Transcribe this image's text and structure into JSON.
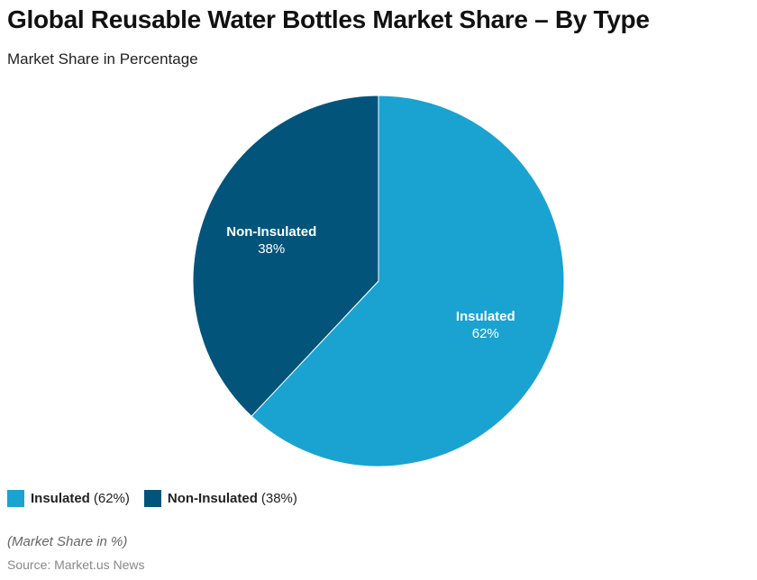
{
  "header": {
    "title": "Global Reusable Water Bottles Market Share – By Type",
    "subtitle": "Market Share in Percentage"
  },
  "legend": {
    "items": [
      {
        "name": "Insulated",
        "value_label": "(62%)",
        "color": "#1aa3d0"
      },
      {
        "name": "Non-Insulated",
        "value_label": "(38%)",
        "color": "#02547b"
      }
    ]
  },
  "footer": {
    "note": "(Market Share in %)",
    "source": "Source: Market.us News"
  },
  "chart_data": {
    "type": "pie",
    "title": "Global Reusable Water Bottles Market Share – By Type",
    "subtitle": "Market Share in Percentage",
    "categories": [
      "Insulated",
      "Non-Insulated"
    ],
    "values": [
      62,
      38
    ],
    "unit": "%",
    "colors": [
      "#1aa3d0",
      "#02547b"
    ],
    "slice_labels": [
      {
        "name": "Insulated",
        "value": "62%"
      },
      {
        "name": "Non-Insulated",
        "value": "38%"
      }
    ],
    "legend_position": "bottom-left",
    "start_angle": "12 o'clock, clockwise"
  }
}
